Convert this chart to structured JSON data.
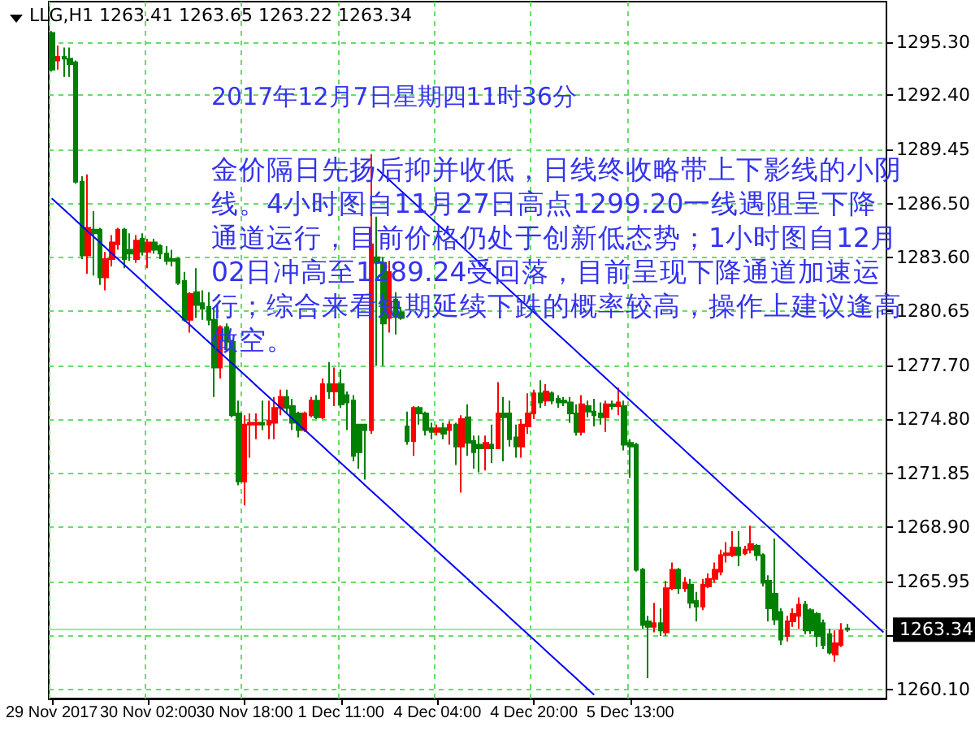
{
  "chart_data": {
    "type": "candlestick",
    "title": "LLG,H1 1263.41 1263.65 1263.22 1263.34",
    "annotations": [
      "2017年12月7日星期四11时36分",
      "金价隔日先扬后抑并收低，日线终收略带上下影线的小阴线。4小时图自11月27日高点1299.20一线遇阻呈下降通道运行，目前价格仍处于创新低态势；1小时图自12月02日冲高至1289.24受回落，目前呈现下降通道加速运行；综合来看短期延续下跌的概率较高，操作上建议逢高做空。"
    ],
    "categories": [
      "29 Nov 2017",
      null,
      null,
      null,
      null,
      null,
      null,
      null,
      null,
      null,
      null,
      null,
      null,
      null,
      null,
      null,
      "30 Nov 02:00",
      null,
      null,
      null,
      null,
      null,
      null,
      null,
      null,
      null,
      null,
      null,
      null,
      null,
      null,
      null,
      "30 Nov 18:00",
      null,
      null,
      null,
      null,
      null,
      null,
      null,
      null,
      null,
      null,
      null,
      null,
      null,
      null,
      null,
      "1 Dec 11:00",
      null,
      null,
      null,
      null,
      null,
      null,
      null,
      null,
      null,
      null,
      null,
      null,
      null,
      null,
      null,
      "4 Dec 04:00",
      null,
      null,
      null,
      null,
      null,
      null,
      null,
      null,
      null,
      null,
      null,
      null,
      null,
      null,
      null,
      "4 Dec 20:00",
      null,
      null,
      null,
      null,
      null,
      null,
      null,
      null,
      null,
      null,
      null,
      null,
      null,
      null,
      null,
      "5 Dec 13:00",
      null,
      null,
      null,
      null,
      null,
      null,
      null,
      null,
      null,
      null,
      null,
      null,
      null,
      null,
      null,
      null,
      null,
      null,
      null,
      null,
      null,
      null,
      null,
      null,
      null,
      null,
      null,
      null,
      null,
      null,
      null,
      null,
      null,
      null,
      null,
      null,
      null,
      null,
      null,
      null,
      null,
      null
    ],
    "ohlc": [
      [
        1295.8,
        1295.9,
        1293.7,
        1293.8
      ],
      [
        1294.3,
        1295.1,
        1293.8,
        1294.5
      ],
      [
        1294.5,
        1295.0,
        1293.4,
        1294.4
      ],
      [
        1294.4,
        1295.0,
        1293.4,
        1294.1
      ],
      [
        1294.2,
        1294.3,
        1287.6,
        1287.7
      ],
      [
        1287.7,
        1288.0,
        1283.5,
        1283.7
      ],
      [
        1283.7,
        1288.1,
        1282.7,
        1285.2
      ],
      [
        1285.1,
        1286.1,
        1282.6,
        1284.9
      ],
      [
        1285.1,
        1285.2,
        1282.1,
        1282.5
      ],
      [
        1282.5,
        1283.9,
        1281.8,
        1283.5
      ],
      [
        1283.5,
        1284.8,
        1283.1,
        1284.4
      ],
      [
        1284.3,
        1285.2,
        1284.0,
        1285.1
      ],
      [
        1285.1,
        1285.2,
        1283.0,
        1283.5
      ],
      [
        1284.0,
        1284.9,
        1283.4,
        1283.8
      ],
      [
        1283.5,
        1284.8,
        1283.3,
        1284.5
      ],
      [
        1284.6,
        1284.9,
        1283.7,
        1283.9
      ],
      [
        1283.9,
        1284.6,
        1283.0,
        1284.4
      ],
      [
        1284.4,
        1284.6,
        1283.8,
        1284.0
      ],
      [
        1284.2,
        1284.3,
        1283.5,
        1283.8
      ],
      [
        1283.8,
        1284.2,
        1283.2,
        1283.4
      ],
      [
        1283.5,
        1284.0,
        1283.1,
        1283.4
      ],
      [
        1283.5,
        1283.6,
        1282.1,
        1282.2
      ],
      [
        1282.3,
        1282.8,
        1280.1,
        1280.2
      ],
      [
        1280.2,
        1281.7,
        1279.5,
        1281.6
      ],
      [
        1281.7,
        1283.0,
        1280.3,
        1281.0
      ],
      [
        1281.1,
        1281.8,
        1280.2,
        1280.8
      ],
      [
        1280.9,
        1281.7,
        1279.9,
        1280.2
      ],
      [
        1280.2,
        1280.8,
        1276.0,
        1277.6
      ],
      [
        1277.6,
        1279.9,
        1277.0,
        1279.8
      ],
      [
        1279.8,
        1280.0,
        1278.5,
        1279.0
      ],
      [
        1279.0,
        1279.1,
        1274.9,
        1275.0
      ],
      [
        1275.1,
        1275.8,
        1271.2,
        1271.4
      ],
      [
        1271.4,
        1275.0,
        1270.1,
        1274.5
      ],
      [
        1274.5,
        1275.1,
        1272.7,
        1274.6
      ],
      [
        1274.5,
        1275.1,
        1273.7,
        1274.6
      ],
      [
        1274.6,
        1275.8,
        1274.2,
        1274.5
      ],
      [
        1274.5,
        1275.8,
        1273.7,
        1274.7
      ],
      [
        1274.6,
        1276.0,
        1273.7,
        1275.4
      ],
      [
        1275.4,
        1276.4,
        1275.0,
        1276.0
      ],
      [
        1276.0,
        1276.4,
        1275.1,
        1275.4
      ],
      [
        1275.5,
        1275.9,
        1274.2,
        1274.6
      ],
      [
        1275.1,
        1275.2,
        1273.8,
        1274.2
      ],
      [
        1274.2,
        1275.2,
        1274.1,
        1275.1
      ],
      [
        1275.0,
        1276.0,
        1274.9,
        1275.8
      ],
      [
        1275.8,
        1276.1,
        1274.8,
        1274.9
      ],
      [
        1274.9,
        1277.0,
        1274.8,
        1276.7
      ],
      [
        1276.7,
        1277.9,
        1275.9,
        1276.3
      ],
      [
        1276.3,
        1277.6,
        1275.5,
        1276.7
      ],
      [
        1276.7,
        1277.5,
        1275.4,
        1275.6
      ],
      [
        1276.1,
        1276.3,
        1274.2,
        1275.7
      ],
      [
        1275.8,
        1276.1,
        1272.5,
        1272.8
      ],
      [
        1274.5,
        1274.5,
        1272.1,
        1273.0
      ],
      [
        1274.5,
        1274.5,
        1271.5,
        1274.2
      ],
      [
        1274.2,
        1289.2,
        1274.0,
        1284.3
      ],
      [
        1283.6,
        1285.8,
        1277.7,
        1283.3
      ],
      [
        1283.3,
        1283.6,
        1277.7,
        1280.0
      ],
      [
        1280.3,
        1283.4,
        1279.5,
        1282.8
      ],
      [
        1281.3,
        1281.7,
        1279.4,
        1280.4
      ],
      [
        1280.6,
        1280.9,
        1280.2,
        1280.3
      ],
      [
        1274.4,
        1275.2,
        1273.4,
        1273.6
      ],
      [
        1273.6,
        1275.5,
        1272.8,
        1275.4
      ],
      [
        1275.4,
        1275.5,
        1274.5,
        1275.1
      ],
      [
        1275.1,
        1275.2,
        1273.9,
        1274.2
      ],
      [
        1274.3,
        1274.6,
        1273.7,
        1274.1
      ],
      [
        1274.1,
        1274.5,
        1273.9,
        1274.3
      ],
      [
        1274.3,
        1274.6,
        1273.7,
        1274.0
      ],
      [
        1274.2,
        1274.7,
        1273.4,
        1274.5
      ],
      [
        1274.5,
        1274.6,
        1272.3,
        1273.3
      ],
      [
        1273.3,
        1275.0,
        1270.8,
        1274.8
      ],
      [
        1274.9,
        1275.6,
        1272.8,
        1273.5
      ],
      [
        1273.6,
        1273.9,
        1272.1,
        1273.0
      ],
      [
        1273.4,
        1273.9,
        1271.9,
        1273.2
      ],
      [
        1273.2,
        1273.9,
        1272.0,
        1273.5
      ],
      [
        1273.4,
        1274.5,
        1272.4,
        1273.2
      ],
      [
        1273.2,
        1276.8,
        1273.2,
        1275.1
      ],
      [
        1275.1,
        1276.0,
        1272.5,
        1274.9
      ],
      [
        1275.1,
        1275.8,
        1273.3,
        1273.7
      ],
      [
        1273.8,
        1274.5,
        1272.7,
        1273.3
      ],
      [
        1273.3,
        1274.8,
        1272.7,
        1274.5
      ],
      [
        1274.4,
        1276.2,
        1274.0,
        1275.1
      ],
      [
        1275.1,
        1276.4,
        1274.8,
        1276.2
      ],
      [
        1276.2,
        1276.9,
        1275.4,
        1275.7
      ],
      [
        1275.8,
        1276.7,
        1275.5,
        1276.3
      ],
      [
        1276.2,
        1276.3,
        1275.6,
        1275.8
      ],
      [
        1275.9,
        1276.1,
        1275.4,
        1275.7
      ],
      [
        1275.8,
        1276.0,
        1275.5,
        1275.7
      ],
      [
        1275.7,
        1276.0,
        1274.6,
        1275.1
      ],
      [
        1275.1,
        1275.6,
        1273.9,
        1274.1
      ],
      [
        1274.1,
        1276.1,
        1273.9,
        1275.6
      ],
      [
        1275.5,
        1275.8,
        1274.9,
        1275.2
      ],
      [
        1275.2,
        1275.9,
        1274.4,
        1275.0
      ],
      [
        1275.1,
        1275.7,
        1274.5,
        1274.9
      ],
      [
        1274.9,
        1275.8,
        1274.1,
        1275.6
      ],
      [
        1275.6,
        1275.8,
        1275.3,
        1275.5
      ],
      [
        1275.5,
        1276.5,
        1275.0,
        1275.7
      ],
      [
        1275.5,
        1275.8,
        1273.1,
        1273.4
      ],
      [
        1273.5,
        1273.7,
        1271.6,
        1273.3
      ],
      [
        1273.4,
        1273.5,
        1266.5,
        1266.6
      ],
      [
        1266.6,
        1266.7,
        1263.4,
        1263.6
      ],
      [
        1263.8,
        1264.1,
        1260.7,
        1263.5
      ],
      [
        1263.5,
        1264.8,
        1263.2,
        1263.7
      ],
      [
        1263.7,
        1264.5,
        1263.0,
        1263.3
      ],
      [
        1263.2,
        1266.0,
        1263.0,
        1265.6
      ],
      [
        1265.6,
        1267.0,
        1265.5,
        1266.6
      ],
      [
        1266.6,
        1266.7,
        1265.3,
        1265.6
      ],
      [
        1265.6,
        1266.2,
        1265.4,
        1265.9
      ],
      [
        1265.8,
        1266.1,
        1264.5,
        1264.8
      ],
      [
        1264.9,
        1265.4,
        1263.8,
        1264.6
      ],
      [
        1264.6,
        1266.1,
        1264.4,
        1265.8
      ],
      [
        1265.7,
        1266.4,
        1265.6,
        1266.1
      ],
      [
        1266.1,
        1267.0,
        1265.9,
        1266.6
      ],
      [
        1266.5,
        1267.7,
        1266.3,
        1267.4
      ],
      [
        1267.4,
        1268.1,
        1267.0,
        1267.5
      ],
      [
        1267.4,
        1268.7,
        1267.3,
        1267.8
      ],
      [
        1267.8,
        1268.7,
        1266.8,
        1267.4
      ],
      [
        1267.5,
        1267.9,
        1267.4,
        1267.7
      ],
      [
        1267.7,
        1269.0,
        1267.5,
        1268.0
      ],
      [
        1267.9,
        1268.0,
        1267.1,
        1267.4
      ],
      [
        1267.4,
        1267.5,
        1265.7,
        1265.9
      ],
      [
        1266.0,
        1266.3,
        1263.8,
        1264.5
      ],
      [
        1265.3,
        1268.3,
        1263.6,
        1263.9
      ],
      [
        1264.3,
        1264.5,
        1262.5,
        1262.8
      ],
      [
        1263.0,
        1264.1,
        1262.7,
        1263.8
      ],
      [
        1263.8,
        1264.5,
        1263.5,
        1264.2
      ],
      [
        1264.1,
        1265.1,
        1263.4,
        1264.7
      ],
      [
        1264.7,
        1264.9,
        1263.1,
        1263.3
      ],
      [
        1264.4,
        1264.5,
        1263.1,
        1263.3
      ],
      [
        1264.2,
        1264.3,
        1262.4,
        1263.0
      ],
      [
        1263.7,
        1263.9,
        1262.3,
        1262.5
      ],
      [
        1263.1,
        1263.4,
        1262.0,
        1262.1
      ],
      [
        1262.0,
        1263.3,
        1261.6,
        1262.6
      ],
      [
        1262.5,
        1263.7,
        1262.4,
        1263.3
      ],
      [
        1263.41,
        1263.65,
        1263.22,
        1263.34
      ],
      null,
      null,
      null,
      null,
      null,
      null
    ],
    "colors": [
      "#008000",
      "#ff0000",
      "#008000",
      "#008000",
      "#008000",
      "#008000",
      "#ff0000",
      "#008000",
      "#008000",
      "#ff0000",
      "#ff0000",
      "#ff0000",
      "#008000",
      "#008000",
      "#ff0000",
      "#008000",
      "#ff0000",
      "#008000",
      "#008000",
      "#008000",
      "#008000",
      "#008000",
      "#008000",
      "#ff0000",
      "#008000",
      "#008000",
      "#008000",
      "#008000",
      "#ff0000",
      "#008000",
      "#008000",
      "#008000",
      "#ff0000",
      "#ff0000",
      "#ff0000",
      "#008000",
      "#ff0000",
      "#ff0000",
      "#ff0000",
      "#008000",
      "#008000",
      "#008000",
      "#ff0000",
      "#ff0000",
      "#008000",
      "#ff0000",
      "#008000",
      "#ff0000",
      "#008000",
      "#008000",
      "#008000",
      "#008000",
      "#008000",
      "#ff0000",
      "#008000",
      "#008000",
      "#ff0000",
      "#008000",
      "#008000",
      "#008000",
      "#ff0000",
      "#008000",
      "#008000",
      "#008000",
      "#ff0000",
      "#008000",
      "#ff0000",
      "#008000",
      "#ff0000",
      "#008000",
      "#008000",
      "#008000",
      "#ff0000",
      "#008000",
      "#ff0000",
      "#008000",
      "#008000",
      "#008000",
      "#ff0000",
      "#ff0000",
      "#ff0000",
      "#008000",
      "#ff0000",
      "#008000",
      "#008000",
      "#008000",
      "#008000",
      "#008000",
      "#ff0000",
      "#008000",
      "#008000",
      "#008000",
      "#ff0000",
      "#008000",
      "#ff0000",
      "#008000",
      "#008000",
      "#008000",
      "#008000",
      "#008000",
      "#ff0000",
      "#008000",
      "#ff0000",
      "#ff0000",
      "#008000",
      "#ff0000",
      "#008000",
      "#008000",
      "#ff0000",
      "#ff0000",
      "#ff0000",
      "#ff0000",
      "#ff0000",
      "#ff0000",
      "#008000",
      "#ff0000",
      "#ff0000",
      "#008000",
      "#008000",
      "#008000",
      "#008000",
      "#008000",
      "#ff0000",
      "#ff0000",
      "#ff0000",
      "#008000",
      "#008000",
      "#008000",
      "#008000",
      "#008000",
      "#ff0000",
      "#ff0000",
      "#008000",
      null,
      null,
      null,
      null,
      null,
      null
    ],
    "series": [
      {
        "type": "line",
        "color": "#0000ff",
        "values": [
          1286.8,
          1286.5,
          1286.2,
          1285.9,
          1285.6,
          1285.3,
          1285.0,
          1284.7,
          1284.4,
          1284.1,
          1283.8,
          1283.5,
          1283.2,
          1282.9,
          1282.6,
          1282.3,
          1282.0,
          1281.7,
          1281.4,
          1281.1,
          1280.8,
          1280.5,
          1280.2,
          1279.9,
          1279.6,
          1279.3,
          1279.0,
          1278.7,
          1278.4,
          1278.1,
          1277.8,
          1277.5,
          1277.2,
          1276.9,
          1276.6,
          1276.3,
          1276.0,
          1275.7,
          1275.4,
          1275.1,
          1274.8,
          1274.5,
          1274.2,
          1273.9,
          1273.6,
          1273.3,
          1273.0,
          1272.7,
          1272.4,
          1272.1,
          1271.8,
          1271.5,
          1271.2,
          1270.9,
          1270.6,
          1270.3,
          1270.0,
          1269.7,
          1269.4,
          1269.1,
          1268.8,
          1268.5,
          1268.2,
          1267.9,
          1267.6,
          1267.3,
          1267.0,
          1266.7,
          1266.4,
          1266.1,
          1265.8,
          1265.5,
          1265.2,
          1264.9,
          1264.6,
          1264.3,
          1264.0,
          1263.7,
          1263.4,
          1263.1,
          1262.8,
          1262.5,
          1262.2,
          1261.9,
          1261.6,
          1261.3,
          1261.0,
          1260.7,
          1260.4,
          1260.1,
          1259.8,
          null,
          null,
          null,
          null,
          null,
          null,
          null,
          null,
          null,
          null,
          null,
          null,
          null,
          null,
          null,
          null,
          null,
          null,
          null,
          null,
          null,
          null,
          null,
          null,
          null,
          null,
          null,
          null,
          null,
          null,
          null,
          null,
          null,
          null,
          null,
          null,
          null,
          null,
          null,
          null,
          null,
          null,
          null,
          null,
          null,
          null,
          null,
          null
        ]
      },
      {
        "type": "line",
        "color": "#0000ff",
        "values": [
          null,
          null,
          null,
          null,
          null,
          null,
          null,
          null,
          null,
          null,
          null,
          null,
          null,
          null,
          null,
          null,
          null,
          null,
          null,
          null,
          null,
          null,
          null,
          null,
          null,
          null,
          null,
          null,
          null,
          null,
          null,
          null,
          null,
          null,
          null,
          null,
          null,
          null,
          null,
          null,
          null,
          null,
          null,
          null,
          null,
          null,
          null,
          null,
          null,
          null,
          null,
          null,
          null,
          null,
          1288.4,
          1288.1,
          1287.8,
          1287.5,
          1287.2,
          1286.9,
          1286.6,
          1286.3,
          1286.0,
          1285.7,
          1285.4,
          1285.1,
          1284.8,
          1284.5,
          1284.2,
          1283.9,
          1283.6,
          1283.3,
          1283.0,
          1282.7,
          1282.4,
          1282.1,
          1281.8,
          1281.5,
          1281.2,
          1280.9,
          1280.6,
          1280.3,
          1280.0,
          1279.7,
          1279.4,
          1279.1,
          1278.8,
          1278.5,
          1278.2,
          1277.9,
          1277.6,
          1277.3,
          1277.0,
          1276.7,
          1276.4,
          1276.1,
          1275.8,
          1275.5,
          1275.2,
          1274.9,
          1274.6,
          1274.3,
          1274.0,
          1273.7,
          1273.4,
          1273.1,
          1272.8,
          1272.5,
          1272.2,
          1271.9,
          1271.6,
          1271.3,
          1271.0,
          1270.7,
          1270.4,
          1270.1,
          1269.8,
          1269.5,
          1269.2,
          1268.9,
          1268.6,
          1268.3,
          1268.0,
          1267.7,
          1267.4,
          1267.1,
          1266.8,
          1266.5,
          1266.2,
          1265.9,
          1265.6,
          1265.3,
          1265.0,
          1264.7,
          1264.4,
          1264.1,
          1263.8,
          1263.5,
          1263.2
        ]
      }
    ],
    "ref_lines": [
      {
        "axis": "y",
        "value": 1263.34,
        "label": "1263.34",
        "color": "#90ee90"
      }
    ],
    "ylim": [
      1259.6,
      1297.5
    ],
    "yticks": [
      {
        "value": 1295.3,
        "label": "1295.30"
      },
      {
        "value": 1292.4,
        "label": "1292.40"
      },
      {
        "value": 1289.45,
        "label": "1289.45"
      },
      {
        "value": 1286.5,
        "label": "1286.50"
      },
      {
        "value": 1283.6,
        "label": "1283.60"
      },
      {
        "value": 1280.65,
        "label": "1280.65"
      },
      {
        "value": 1277.7,
        "label": "1277.70"
      },
      {
        "value": 1274.8,
        "label": "1274.80"
      },
      {
        "value": 1271.85,
        "label": "1271.85"
      },
      {
        "value": 1268.9,
        "label": "1268.90"
      },
      {
        "value": 1265.95,
        "label": "1265.95"
      },
      {
        "value": 1263.0,
        "label": null
      },
      {
        "value": 1260.1,
        "label": "1260.10"
      }
    ],
    "grid": true,
    "marker": "none"
  }
}
